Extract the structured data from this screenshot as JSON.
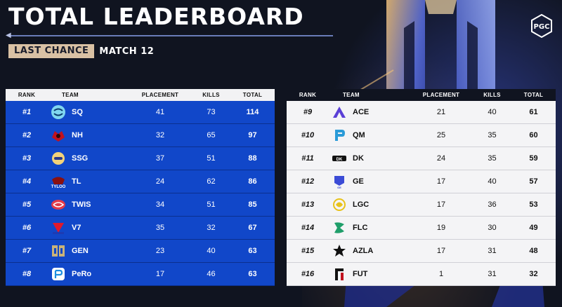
{
  "header": {
    "title": "TOTAL LEADERBOARD",
    "badge": "LAST CHANCE",
    "match": "MATCH 12"
  },
  "columns": {
    "rank": "RANK",
    "team": "TEAM",
    "placement": "PLACEMENT",
    "kills": "KILLS",
    "total": "TOTAL"
  },
  "colors": {
    "left_row": "#1147c9",
    "right_row": "#f4f4f6",
    "badge": "#d9c1a4",
    "background": "#101420"
  },
  "left_table": [
    {
      "rank": "#1",
      "team": "SQ",
      "placement": "41",
      "kills": "73",
      "total": "114",
      "icon": "sq-logo-icon"
    },
    {
      "rank": "#2",
      "team": "NH",
      "placement": "32",
      "kills": "65",
      "total": "97",
      "icon": "nh-logo-icon"
    },
    {
      "rank": "#3",
      "team": "SSG",
      "placement": "37",
      "kills": "51",
      "total": "88",
      "icon": "ssg-logo-icon"
    },
    {
      "rank": "#4",
      "team": "TL",
      "placement": "24",
      "kills": "62",
      "total": "86",
      "icon": "tl-logo-icon"
    },
    {
      "rank": "#5",
      "team": "TWIS",
      "placement": "34",
      "kills": "51",
      "total": "85",
      "icon": "twis-logo-icon"
    },
    {
      "rank": "#6",
      "team": "V7",
      "placement": "35",
      "kills": "32",
      "total": "67",
      "icon": "v7-logo-icon"
    },
    {
      "rank": "#7",
      "team": "GEN",
      "placement": "23",
      "kills": "40",
      "total": "63",
      "icon": "gen-logo-icon"
    },
    {
      "rank": "#8",
      "team": "PeRo",
      "placement": "17",
      "kills": "46",
      "total": "63",
      "icon": "pero-logo-icon"
    }
  ],
  "right_table": [
    {
      "rank": "#9",
      "team": "ACE",
      "placement": "21",
      "kills": "40",
      "total": "61",
      "icon": "ace-logo-icon"
    },
    {
      "rank": "#10",
      "team": "QM",
      "placement": "25",
      "kills": "35",
      "total": "60",
      "icon": "qm-logo-icon"
    },
    {
      "rank": "#11",
      "team": "DK",
      "placement": "24",
      "kills": "35",
      "total": "59",
      "icon": "dk-logo-icon"
    },
    {
      "rank": "#12",
      "team": "GE",
      "placement": "17",
      "kills": "40",
      "total": "57",
      "icon": "ge-logo-icon"
    },
    {
      "rank": "#13",
      "team": "LGC",
      "placement": "17",
      "kills": "36",
      "total": "53",
      "icon": "lgc-logo-icon"
    },
    {
      "rank": "#14",
      "team": "FLC",
      "placement": "19",
      "kills": "30",
      "total": "49",
      "icon": "flc-logo-icon"
    },
    {
      "rank": "#15",
      "team": "AZLA",
      "placement": "17",
      "kills": "31",
      "total": "48",
      "icon": "azla-logo-icon"
    },
    {
      "rank": "#16",
      "team": "FUT",
      "placement": "1",
      "kills": "31",
      "total": "32",
      "icon": "fut-logo-icon"
    }
  ]
}
